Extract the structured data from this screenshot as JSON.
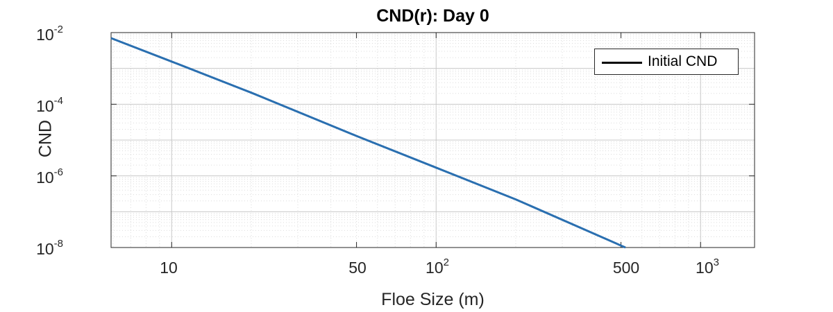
{
  "chart_data": {
    "type": "line",
    "title": "CND(r): Day 0",
    "xlabel": "Floe Size (m)",
    "ylabel": "CND",
    "xscale": "log",
    "yscale": "log",
    "xlim": [
      5.9,
      1600
    ],
    "ylim": [
      1e-08,
      0.01
    ],
    "grid": true,
    "minor_grid": true,
    "legend_position": "top-right",
    "xticks": [
      {
        "base": "10",
        "exp": ""
      },
      {
        "base": "50",
        "exp": ""
      },
      {
        "base": "10",
        "exp": "2"
      },
      {
        "base": "500",
        "exp": ""
      },
      {
        "base": "10",
        "exp": "3"
      }
    ],
    "xtick_values": [
      10,
      50,
      100,
      500,
      1000
    ],
    "yticks": [
      {
        "base": "10",
        "exp": "-2"
      },
      {
        "base": "10",
        "exp": "-4"
      },
      {
        "base": "10",
        "exp": "-6"
      },
      {
        "base": "10",
        "exp": "-8"
      }
    ],
    "ytick_values": [
      0.01,
      0.0001,
      1e-06,
      1e-08
    ],
    "series": [
      {
        "name": "Initial CND",
        "color": "#2a6fb0",
        "legend_color": "#000000",
        "x": [
          5.9,
          10,
          20,
          50,
          100,
          200,
          520
        ],
        "y": [
          0.007,
          0.00155,
          0.00021,
          1.3e-05,
          1.7e-06,
          2.2e-07,
          1e-08
        ]
      }
    ]
  }
}
